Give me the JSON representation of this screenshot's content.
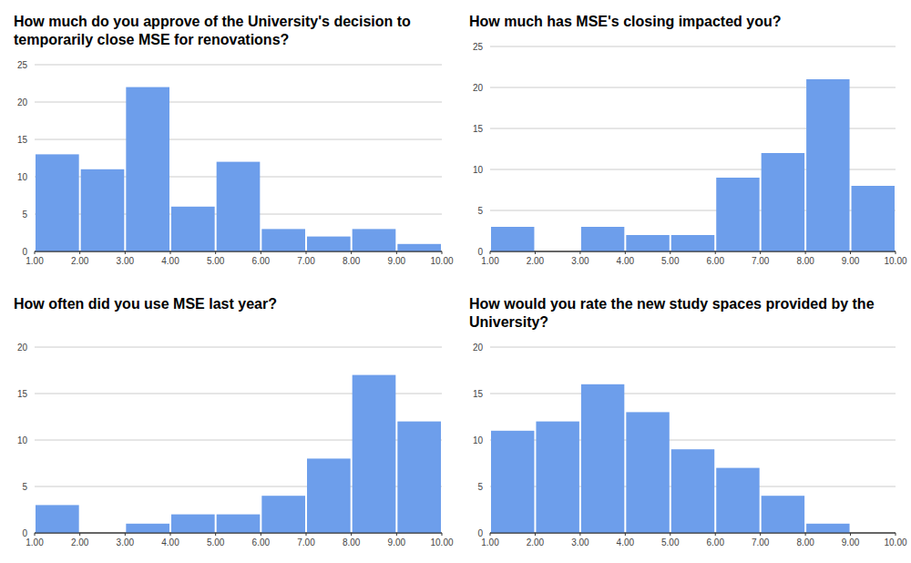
{
  "chart_data": [
    {
      "type": "histogram",
      "title": "How much do you approve of the University's decision to temporarily close MSE for renovations?",
      "bins": [
        1,
        2,
        3,
        4,
        5,
        6,
        7,
        8,
        9,
        10
      ],
      "values": [
        13,
        11,
        22,
        6,
        12,
        3,
        2,
        3,
        1
      ],
      "color": "#6d9eeb",
      "xlim": [
        1,
        10
      ],
      "ylim": [
        0,
        25
      ],
      "yticks": [
        0,
        5,
        10,
        15,
        20,
        25
      ],
      "xticks": [
        {
          "value": 1,
          "label": "1.00"
        },
        {
          "value": 2,
          "label": "2.00"
        },
        {
          "value": 3,
          "label": "3.00"
        },
        {
          "value": 4,
          "label": "4.00"
        },
        {
          "value": 5,
          "label": "5.00"
        },
        {
          "value": 6,
          "label": "6.00"
        },
        {
          "value": 7,
          "label": "7.00"
        },
        {
          "value": 8,
          "label": "8.00"
        },
        {
          "value": 9,
          "label": "9.00"
        },
        {
          "value": 10,
          "label": "10.00"
        }
      ],
      "grid": true
    },
    {
      "type": "histogram",
      "title": "How much has MSE's closing impacted you?",
      "bins": [
        1,
        2,
        3,
        4,
        5,
        6,
        7,
        8,
        9,
        10
      ],
      "values": [
        3,
        0,
        3,
        2,
        2,
        9,
        12,
        21,
        8
      ],
      "color": "#6d9eeb",
      "xlim": [
        1,
        10
      ],
      "ylim": [
        0,
        25
      ],
      "yticks": [
        0,
        5,
        10,
        15,
        20,
        25
      ],
      "xticks": [
        {
          "value": 1,
          "label": "1.00"
        },
        {
          "value": 2,
          "label": "2.00"
        },
        {
          "value": 3,
          "label": "3.00"
        },
        {
          "value": 4,
          "label": "4.00"
        },
        {
          "value": 5,
          "label": "5.00"
        },
        {
          "value": 6,
          "label": "6.00"
        },
        {
          "value": 7,
          "label": "7.00"
        },
        {
          "value": 8,
          "label": "8.00"
        },
        {
          "value": 9,
          "label": "9.00"
        },
        {
          "value": 10,
          "label": "10.00"
        }
      ],
      "grid": true
    },
    {
      "type": "histogram",
      "title": "How often did you use MSE last year?",
      "bins": [
        1,
        2,
        3,
        4,
        5,
        6,
        7,
        8,
        9,
        10
      ],
      "values": [
        3,
        0,
        1,
        2,
        2,
        4,
        8,
        17,
        12
      ],
      "color": "#6d9eeb",
      "xlim": [
        1,
        10
      ],
      "ylim": [
        0,
        20
      ],
      "yticks": [
        0,
        5,
        10,
        15,
        20
      ],
      "xticks": [
        {
          "value": 1,
          "label": "1.00"
        },
        {
          "value": 2,
          "label": "2.00"
        },
        {
          "value": 3,
          "label": "3.00"
        },
        {
          "value": 4,
          "label": "4.00"
        },
        {
          "value": 5,
          "label": "5.00"
        },
        {
          "value": 6,
          "label": "6.00"
        },
        {
          "value": 7,
          "label": "7.00"
        },
        {
          "value": 8,
          "label": "8.00"
        },
        {
          "value": 9,
          "label": "9.00"
        },
        {
          "value": 10,
          "label": "10.00"
        }
      ],
      "grid": true
    },
    {
      "type": "histogram",
      "title": "How would you rate the new study spaces provided by the University?",
      "bins": [
        1,
        2,
        3,
        4,
        5,
        6,
        7,
        8,
        9,
        10
      ],
      "values": [
        11,
        12,
        16,
        13,
        9,
        7,
        4,
        1,
        0
      ],
      "color": "#6d9eeb",
      "xlim": [
        1,
        10
      ],
      "ylim": [
        0,
        20
      ],
      "yticks": [
        0,
        5,
        10,
        15,
        20
      ],
      "xticks": [
        {
          "value": 1,
          "label": "1.00"
        },
        {
          "value": 2,
          "label": "2.00"
        },
        {
          "value": 3,
          "label": "3.00"
        },
        {
          "value": 4,
          "label": "4.00"
        },
        {
          "value": 5,
          "label": "5.00"
        },
        {
          "value": 6,
          "label": "6.00"
        },
        {
          "value": 7,
          "label": "7.00"
        },
        {
          "value": 8,
          "label": "8.00"
        },
        {
          "value": 9,
          "label": "9.00"
        },
        {
          "value": 10,
          "label": "10.00"
        }
      ],
      "grid": true
    }
  ]
}
